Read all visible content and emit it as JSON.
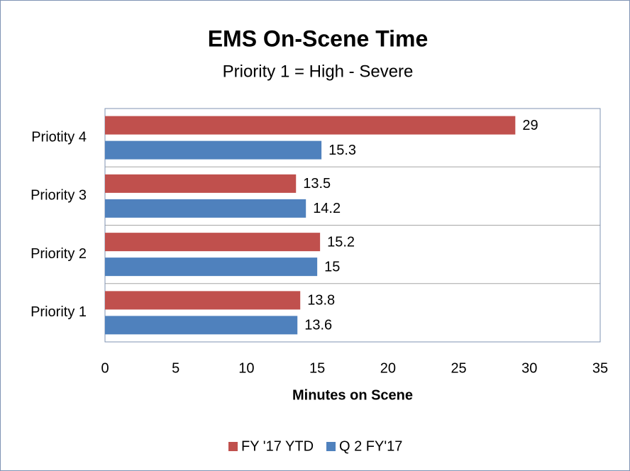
{
  "chart_data": {
    "type": "hbar",
    "title": "EMS On-Scene Time",
    "subtitle": "Priority 1 = High - Severe",
    "x_label": "Minutes on Scene",
    "categories": [
      "Priority 1",
      "Priority 2",
      "Priority 3",
      "Priotity 4"
    ],
    "series": [
      {
        "name": "FY '17 YTD",
        "color": "#c0504d",
        "values": [
          13.8,
          15.2,
          13.5,
          29
        ]
      },
      {
        "name": "Q 2 FY'17",
        "color": "#4f81bd",
        "values": [
          13.6,
          15,
          14.2,
          15.3
        ]
      }
    ],
    "xlim": [
      0,
      35
    ],
    "xticks": [
      0,
      5,
      10,
      15,
      20,
      25,
      30,
      35
    ],
    "grid": true,
    "legend": "bottom"
  }
}
